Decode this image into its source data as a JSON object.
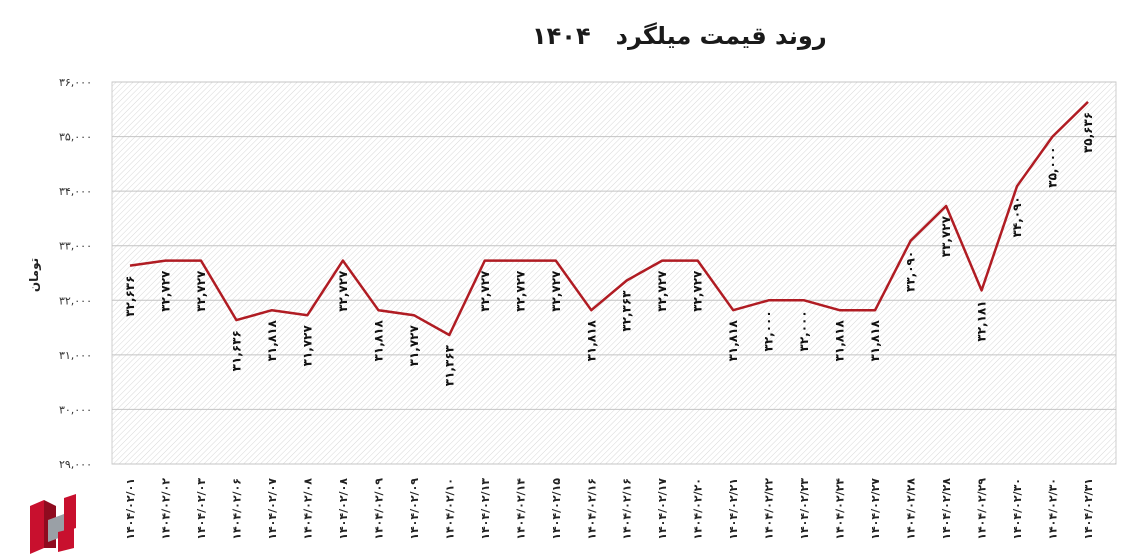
{
  "chart_data": {
    "type": "line",
    "title": "روند قیمت میلگرد   ۱۴۰۴",
    "ylabel": "تومان",
    "xlabel": "",
    "ylim": [
      29000,
      36000
    ],
    "yticks": [
      29000,
      30000,
      31000,
      32000,
      33000,
      34000,
      35000,
      36000
    ],
    "ytick_labels": [
      "۲۹,۰۰۰",
      "۳۰,۰۰۰",
      "۳۱,۰۰۰",
      "۳۲,۰۰۰",
      "۳۳,۰۰۰",
      "۳۴,۰۰۰",
      "۳۵,۰۰۰",
      "۳۶,۰۰۰"
    ],
    "grid": true,
    "line_color": "#b01c23",
    "categories": [
      "۱۴۰۴/۰۲/۰۱",
      "۱۴۰۴/۰۲/۰۲",
      "۱۴۰۴/۰۲/۰۳",
      "۱۴۰۴/۰۲/۰۶",
      "۱۴۰۴/۰۲/۰۷",
      "۱۴۰۴/۰۲/۰۸",
      "۱۴۰۴/۰۲/۰۸",
      "۱۴۰۴/۰۲/۰۹",
      "۱۴۰۴/۰۲/۰۹",
      "۱۴۰۴/۰۲/۱۰",
      "۱۴۰۴/۰۲/۱۳",
      "۱۴۰۴/۰۲/۱۴",
      "۱۴۰۴/۰۲/۱۵",
      "۱۴۰۴/۰۲/۱۶",
      "۱۴۰۴/۰۲/۱۶",
      "۱۴۰۴/۰۲/۱۷",
      "۱۴۰۴/۰۲/۲۰",
      "۱۴۰۴/۰۲/۲۱",
      "۱۴۰۴/۰۲/۲۲",
      "۱۴۰۴/۰۲/۲۳",
      "۱۴۰۴/۰۲/۲۴",
      "۱۴۰۴/۰۲/۲۷",
      "۱۴۰۴/۰۲/۲۸",
      "۱۴۰۴/۰۲/۲۸",
      "۱۴۰۴/۰۲/۲۹",
      "۱۴۰۴/۰۲/۳۰",
      "۱۴۰۴/۰۲/۳۰",
      "۱۴۰۴/۰۲/۳۱"
    ],
    "values": [
      32636,
      32727,
      32727,
      31636,
      31818,
      31727,
      32727,
      31818,
      31727,
      31363,
      32727,
      32727,
      32727,
      31818,
      32363,
      32727,
      32727,
      31818,
      32000,
      32000,
      31818,
      31818,
      33090,
      33727,
      32181,
      34090,
      35000,
      35636
    ],
    "value_labels": [
      "۳۲,۶۳۶",
      "۳۲,۷۲۷",
      "۳۲,۷۲۷",
      "۳۱,۶۳۶",
      "۳۱,۸۱۸",
      "۳۱,۷۲۷",
      "۳۲,۷۲۷",
      "۳۱,۸۱۸",
      "۳۱,۷۲۷",
      "۳۱,۳۶۳",
      "۳۲,۷۲۷",
      "۳۲,۷۲۷",
      "۳۲,۷۲۷",
      "۳۱,۸۱۸",
      "۳۲,۳۶۳",
      "۳۲,۷۲۷",
      "۳۲,۷۲۷",
      "۳۱,۸۱۸",
      "۳۲,۰۰۰",
      "۳۲,۰۰۰",
      "۳۱,۸۱۸",
      "۳۱,۸۱۸",
      "۳۳,۰۹۰",
      "۳۳,۷۲۷",
      "۳۲,۱۸۱",
      "۳۴,۰۹۰",
      "۳۵,۰۰۰",
      "۳۵,۶۳۶"
    ]
  },
  "logo": {
    "name": "brand-logo-icon",
    "primary_color": "#c8102e",
    "secondary_color": "#9aa0a6"
  }
}
